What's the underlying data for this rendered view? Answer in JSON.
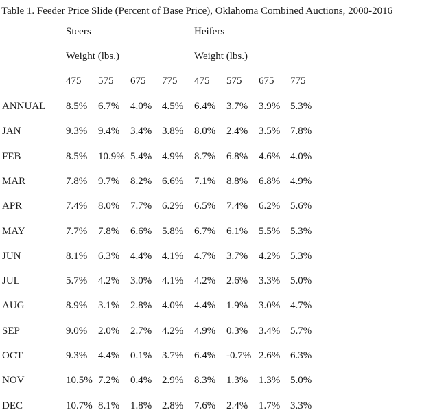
{
  "title": "Table 1.  Feeder Price Slide (Percent of Base Price), Oklahoma Combined Auctions, 2000-2016",
  "groups": [
    {
      "label": "Steers",
      "sublabel": "Weight (lbs.)"
    },
    {
      "label": "Heifers",
      "sublabel": "Weight (lbs.)"
    }
  ],
  "weights": [
    "475",
    "575",
    "675",
    "775",
    "475",
    "575",
    "675",
    "775"
  ],
  "rows": [
    {
      "label": "ANNUAL",
      "values": [
        "8.5%",
        "6.7%",
        "4.0%",
        "4.5%",
        "6.4%",
        "3.7%",
        "3.9%",
        "5.3%"
      ]
    },
    {
      "label": "JAN",
      "values": [
        "9.3%",
        "9.4%",
        "3.4%",
        "3.8%",
        "8.0%",
        "2.4%",
        "3.5%",
        "7.8%"
      ]
    },
    {
      "label": "FEB",
      "values": [
        "8.5%",
        "10.9%",
        "5.4%",
        "4.9%",
        "8.7%",
        "6.8%",
        "4.6%",
        "4.0%"
      ]
    },
    {
      "label": "MAR",
      "values": [
        "7.8%",
        "9.7%",
        "8.2%",
        "6.6%",
        "7.1%",
        "8.8%",
        "6.8%",
        "4.9%"
      ]
    },
    {
      "label": "APR",
      "values": [
        "7.4%",
        "8.0%",
        "7.7%",
        "6.2%",
        "6.5%",
        "7.4%",
        "6.2%",
        "5.6%"
      ]
    },
    {
      "label": "MAY",
      "values": [
        "7.7%",
        "7.8%",
        "6.6%",
        "5.8%",
        "6.7%",
        "6.1%",
        "5.5%",
        "5.3%"
      ]
    },
    {
      "label": "JUN",
      "values": [
        "8.1%",
        "6.3%",
        "4.4%",
        "4.1%",
        "4.7%",
        "3.7%",
        "4.2%",
        "5.3%"
      ]
    },
    {
      "label": "JUL",
      "values": [
        "5.7%",
        "4.2%",
        "3.0%",
        "4.1%",
        "4.2%",
        "2.6%",
        "3.3%",
        "5.0%"
      ]
    },
    {
      "label": "AUG",
      "values": [
        "8.9%",
        "3.1%",
        "2.8%",
        "4.0%",
        "4.4%",
        "1.9%",
        "3.0%",
        "4.7%"
      ]
    },
    {
      "label": "SEP",
      "values": [
        "9.0%",
        "2.0%",
        "2.7%",
        "4.2%",
        "4.9%",
        "0.3%",
        "3.4%",
        "5.7%"
      ]
    },
    {
      "label": "OCT",
      "values": [
        "9.3%",
        "4.4%",
        "0.1%",
        "3.7%",
        "6.4%",
        "-0.7%",
        "2.6%",
        "6.3%"
      ]
    },
    {
      "label": "NOV",
      "values": [
        "10.5%",
        "7.2%",
        "0.4%",
        "2.9%",
        "8.3%",
        "1.3%",
        "1.3%",
        "5.0%"
      ]
    },
    {
      "label": "DEC",
      "values": [
        "10.7%",
        "8.1%",
        "1.8%",
        "2.8%",
        "7.6%",
        "2.4%",
        "1.7%",
        "3.3%"
      ]
    }
  ]
}
